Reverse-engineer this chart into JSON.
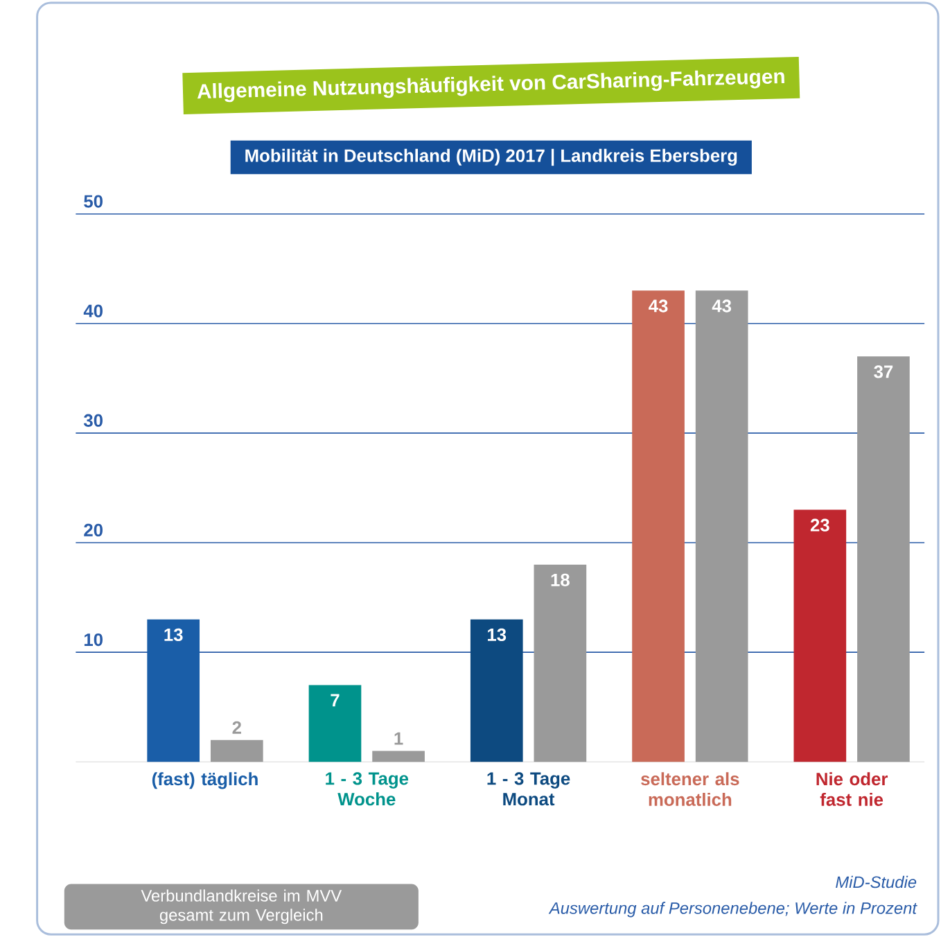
{
  "chart_data": {
    "type": "bar",
    "title": "Allgemeine Nutzungshäufigkeit von CarSharing-Fahrzeugen",
    "subtitle": "Mobilität in Deutschland (MiD) 2017 | Landkreis Ebersberg",
    "categories": [
      "(fast) täglich",
      "1 - 3 Tage Woche",
      "1 - 3 Tage Monat",
      "seltener als monatlich",
      "Nie oder fast nie"
    ],
    "series": [
      {
        "colors": [
          "#1a5ea8",
          "#00938c",
          "#0d4a80",
          "#c96a58",
          "#c0272f"
        ],
        "values": [
          13,
          7,
          13,
          43,
          23
        ]
      },
      {
        "name": "Verbundlandkreise im MVV gesamt zum Vergleich",
        "color": "#9a9a9a",
        "values": [
          2,
          1,
          18,
          43,
          37
        ]
      }
    ],
    "ylim": [
      0,
      50
    ],
    "yticks": [
      10,
      20,
      30,
      40,
      50
    ],
    "grid": "y",
    "data_labels": true,
    "legend": "bottom left",
    "annotations": [
      "MiD-Studie",
      "Auswertung auf Personenebene; Werte in Prozent"
    ]
  }
}
